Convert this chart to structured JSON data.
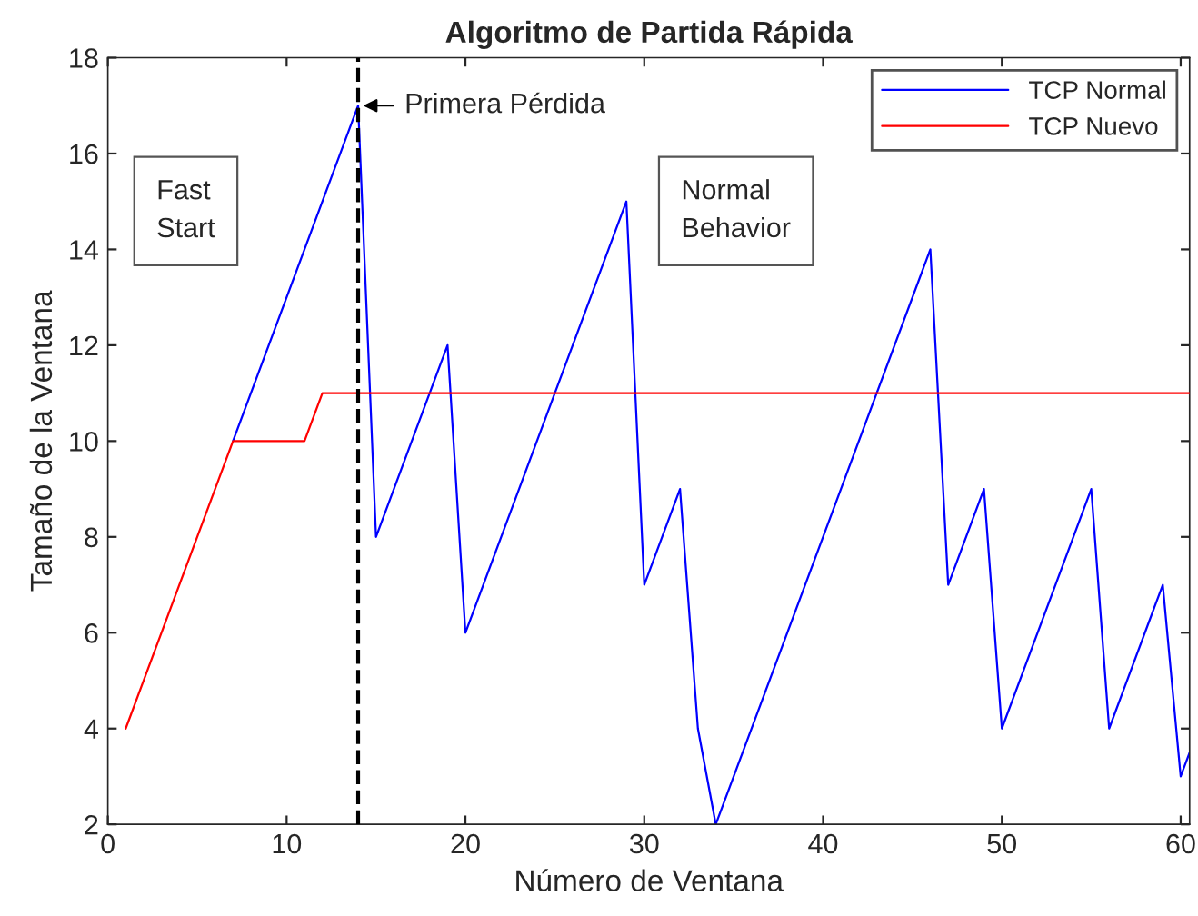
{
  "chart_data": {
    "type": "line",
    "title": "Algoritmo de Partida Rápida",
    "xlabel": "Número de Ventana",
    "ylabel": "Tamaño de la Ventana",
    "series": [
      {
        "name": "TCP Normal",
        "color": "#0000ff",
        "x": [
          7,
          14,
          15,
          19,
          20,
          29,
          30,
          32,
          33,
          34,
          46,
          47,
          49,
          50,
          55,
          56,
          59,
          60,
          60.5
        ],
        "values": [
          10,
          17,
          8,
          12,
          6,
          15,
          7,
          9,
          4,
          2,
          14,
          7,
          9,
          4,
          9,
          4,
          7,
          3,
          3.5
        ]
      },
      {
        "name": "TCP Nuevo",
        "color": "#ff0000",
        "x": [
          1,
          7,
          11,
          12,
          60.5
        ],
        "values": [
          4,
          10,
          10,
          11,
          11
        ]
      }
    ],
    "xlim": [
      0,
      60.5
    ],
    "ylim": [
      2,
      18
    ],
    "xticks": [
      0,
      10,
      20,
      30,
      40,
      50,
      60
    ],
    "yticks": [
      2,
      4,
      6,
      8,
      10,
      12,
      14,
      16,
      18
    ],
    "ref_lines": [
      {
        "axis": "x",
        "value": 14,
        "color": "#000000",
        "line_style": "dashed"
      }
    ],
    "annotations": [
      {
        "text": "Primera Pérdida",
        "x": 14,
        "y": 17
      },
      "Fast\nStart",
      "Normal\nBehavior"
    ],
    "legend": "top right",
    "grid": false,
    "marker": "none",
    "line_style": "solid"
  }
}
